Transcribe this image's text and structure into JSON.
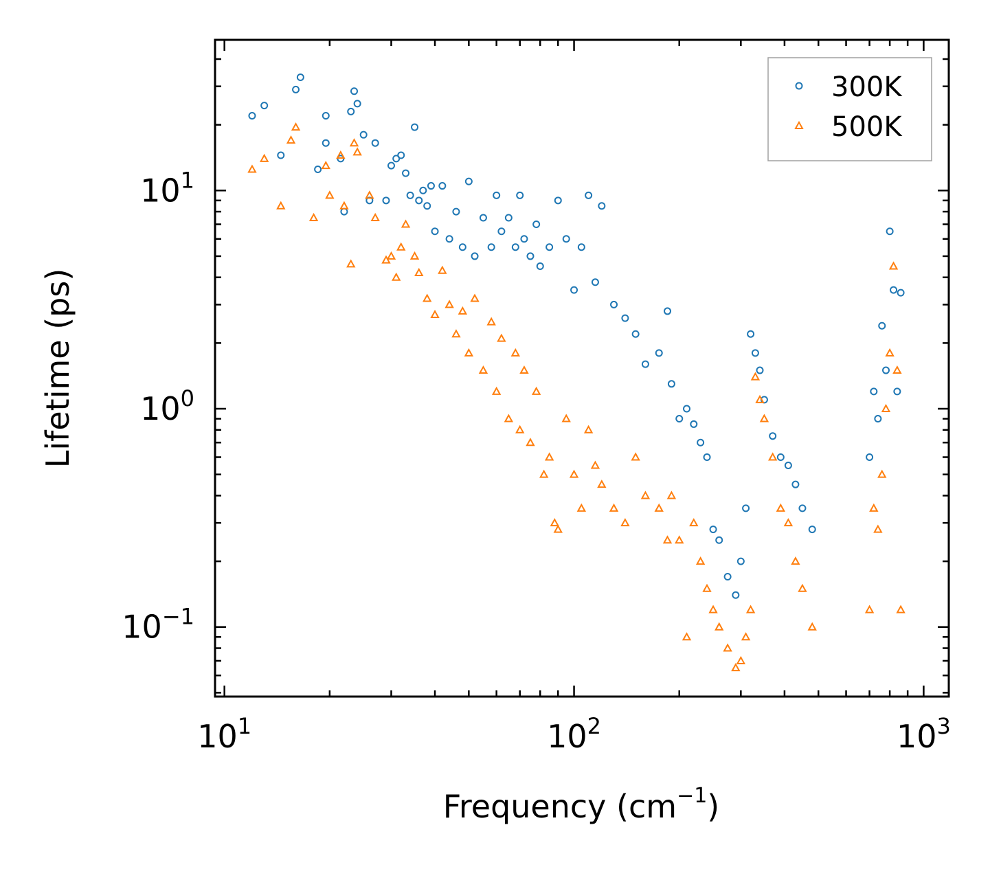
{
  "chart_data": {
    "type": "scatter",
    "title": "",
    "xlabel": "Frequency (cm",
    "xlabel_sup": "−1",
    "xlabel_end": ")",
    "ylabel": "Lifetime (ps)",
    "xscale": "log",
    "yscale": "log",
    "xlim": [
      9.4,
      1180
    ],
    "ylim": [
      0.048,
      49
    ],
    "x_ticks": [
      {
        "value": 10,
        "base": "10",
        "exp": "1"
      },
      {
        "value": 100,
        "base": "10",
        "exp": "2"
      },
      {
        "value": 1000,
        "base": "10",
        "exp": "3"
      }
    ],
    "y_ticks": [
      {
        "value": 0.1,
        "base": "10",
        "exp": "−1"
      },
      {
        "value": 1,
        "base": "10",
        "exp": "0"
      },
      {
        "value": 10,
        "base": "10",
        "exp": "1"
      }
    ],
    "legend_position": "top-right",
    "series": [
      {
        "name": "300K",
        "marker": "circle",
        "color": "#1f77b4",
        "x": [
          12,
          13,
          14.5,
          16,
          16.5,
          18.5,
          19.5,
          19.5,
          21.5,
          22,
          23,
          23.5,
          24,
          25,
          26,
          27,
          29,
          30,
          31,
          32,
          33,
          34,
          35,
          36,
          37,
          38,
          39,
          40,
          42,
          44,
          46,
          48,
          50,
          52,
          55,
          58,
          60,
          62,
          65,
          68,
          70,
          72,
          75,
          78,
          80,
          85,
          90,
          95,
          100,
          105,
          110,
          115,
          120,
          130,
          140,
          150,
          160,
          175,
          185,
          190,
          200,
          210,
          220,
          230,
          240,
          250,
          260,
          275,
          290,
          300,
          310,
          320,
          330,
          340,
          350,
          370,
          390,
          410,
          430,
          450,
          480,
          700,
          720,
          740,
          760,
          780,
          800,
          820,
          840,
          860
        ],
        "y": [
          22,
          24.5,
          14.5,
          29,
          33,
          12.5,
          16.5,
          22,
          14,
          8,
          23,
          28.5,
          25,
          18,
          9,
          16.5,
          9,
          13,
          14,
          14.5,
          12,
          9.5,
          19.5,
          9,
          10,
          8.5,
          10.5,
          6.5,
          10.5,
          6,
          8,
          5.5,
          11,
          5,
          7.5,
          5.5,
          9.5,
          6.5,
          7.5,
          5.5,
          9.5,
          6,
          5,
          7,
          4.5,
          5.5,
          9,
          6,
          3.5,
          5.5,
          9.5,
          3.8,
          8.5,
          3,
          2.6,
          2.2,
          1.6,
          1.8,
          2.8,
          1.3,
          0.9,
          1.0,
          0.85,
          0.7,
          0.6,
          0.28,
          0.25,
          0.17,
          0.14,
          0.2,
          0.35,
          2.2,
          1.8,
          1.5,
          1.1,
          0.75,
          0.6,
          0.55,
          0.45,
          0.35,
          0.28,
          0.6,
          1.2,
          0.9,
          2.4,
          1.5,
          6.5,
          3.5,
          1.2,
          3.4
        ]
      },
      {
        "name": "500K",
        "marker": "triangle",
        "color": "#ff7f0e",
        "x": [
          12,
          13,
          14.5,
          15.5,
          16,
          18,
          19.5,
          20,
          21.5,
          22,
          23,
          23.5,
          24,
          26,
          27,
          29,
          30,
          31,
          32,
          33,
          35,
          36,
          38,
          40,
          42,
          44,
          46,
          48,
          50,
          52,
          55,
          58,
          60,
          62,
          65,
          68,
          70,
          72,
          75,
          78,
          82,
          85,
          88,
          90,
          95,
          100,
          105,
          110,
          115,
          120,
          130,
          140,
          150,
          160,
          175,
          185,
          190,
          200,
          210,
          220,
          230,
          240,
          250,
          260,
          275,
          290,
          300,
          310,
          320,
          330,
          340,
          350,
          370,
          390,
          410,
          430,
          450,
          480,
          700,
          720,
          740,
          760,
          780,
          800,
          820,
          840,
          860
        ],
        "y": [
          12.5,
          14,
          8.5,
          17,
          19.5,
          7.5,
          13,
          9.5,
          14.5,
          8.5,
          4.6,
          16.5,
          15,
          9.5,
          7.5,
          4.8,
          5,
          4,
          5.5,
          7,
          5,
          4.2,
          3.2,
          2.7,
          4.3,
          3,
          2.2,
          2.8,
          1.8,
          3.2,
          1.5,
          2.5,
          1.2,
          2.1,
          0.9,
          1.8,
          0.8,
          1.5,
          0.7,
          1.2,
          0.5,
          0.6,
          0.3,
          0.28,
          0.9,
          0.5,
          0.35,
          0.8,
          0.55,
          0.45,
          0.35,
          0.3,
          0.6,
          0.4,
          0.35,
          0.25,
          0.4,
          0.25,
          0.09,
          0.3,
          0.2,
          0.15,
          0.12,
          0.1,
          0.08,
          0.065,
          0.07,
          0.09,
          0.12,
          1.4,
          1.1,
          0.9,
          0.6,
          0.35,
          0.3,
          0.2,
          0.15,
          0.1,
          0.12,
          0.35,
          0.28,
          0.5,
          1.0,
          1.8,
          4.5,
          1.5,
          0.12
        ]
      }
    ]
  }
}
